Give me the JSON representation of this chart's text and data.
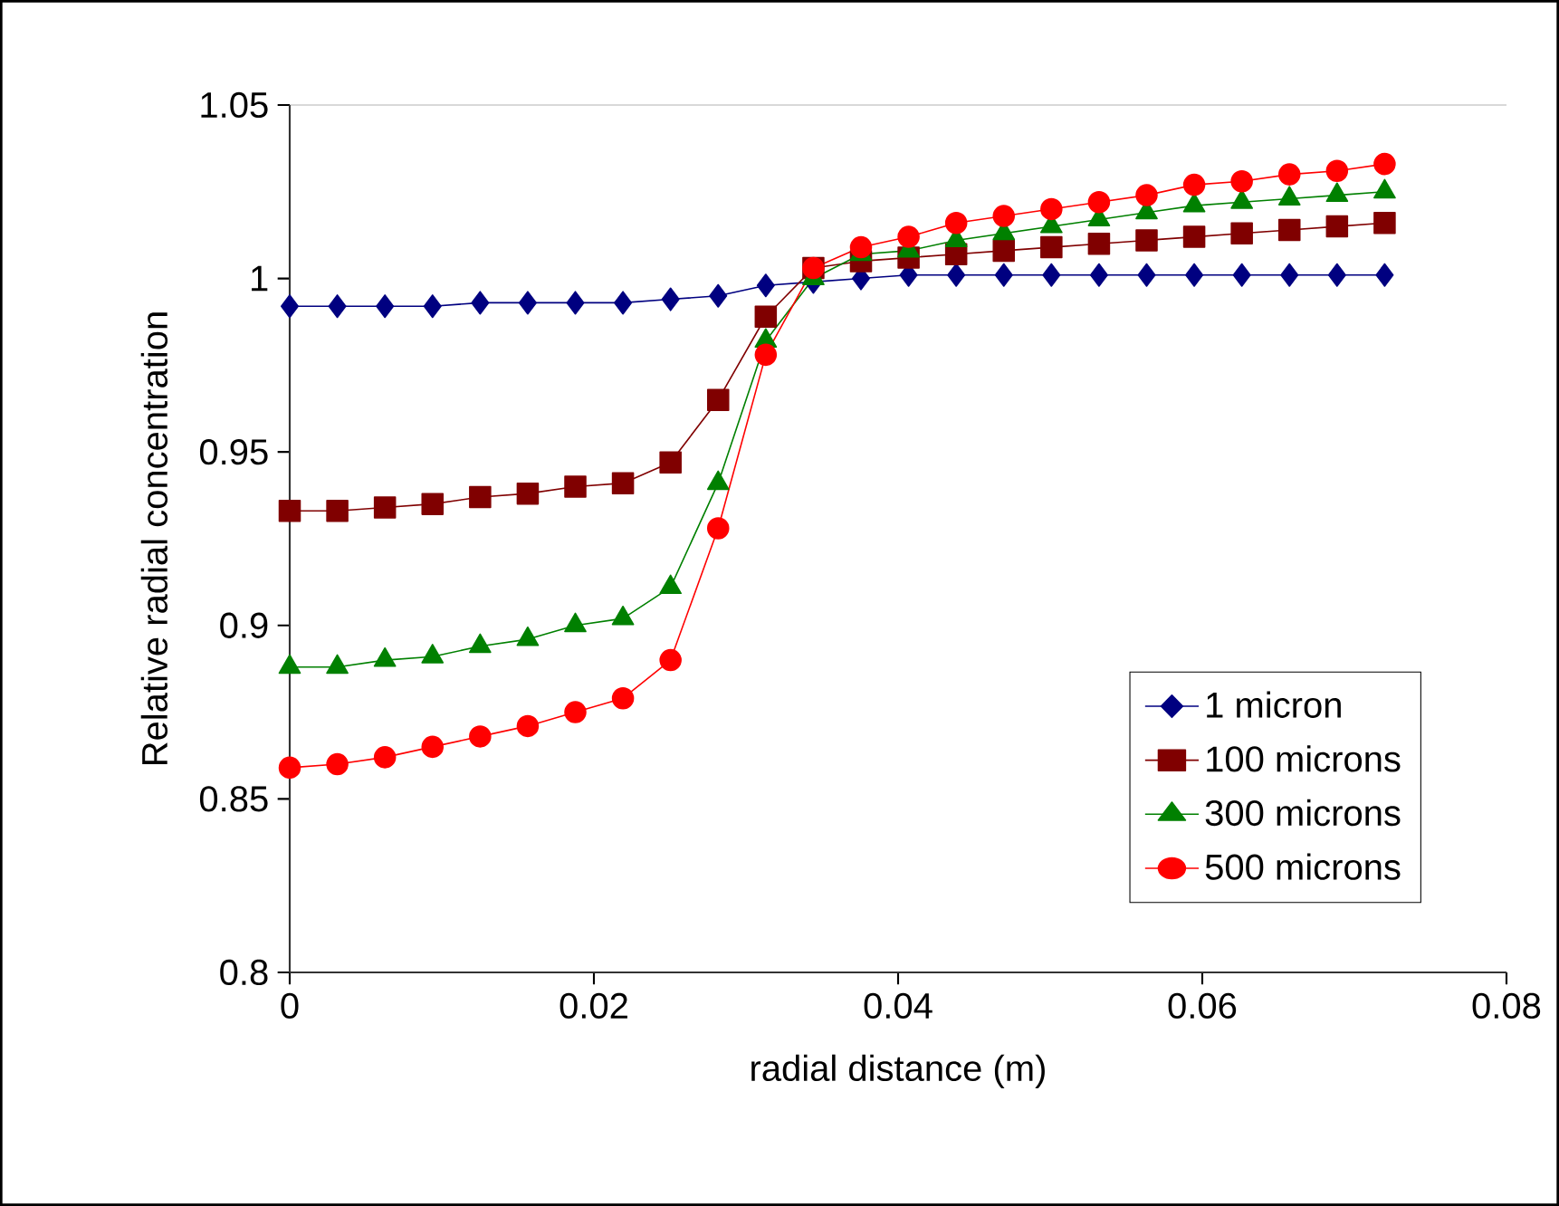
{
  "chart_data": {
    "type": "line",
    "xlabel": "radial distance (m)",
    "ylabel": "Relative radial concentration",
    "x": [
      0,
      0.00313,
      0.00626,
      0.00939,
      0.01252,
      0.01565,
      0.01878,
      0.02191,
      0.02504,
      0.02817,
      0.0313,
      0.03443,
      0.03756,
      0.04069,
      0.04382,
      0.04695,
      0.05008,
      0.05321,
      0.05634,
      0.05947,
      0.0626,
      0.06573,
      0.06886,
      0.07199
    ],
    "series": [
      {
        "name": "1 micron",
        "color": "#000080",
        "marker": "diamond",
        "values": [
          0.992,
          0.992,
          0.992,
          0.992,
          0.993,
          0.993,
          0.993,
          0.993,
          0.994,
          0.995,
          0.998,
          0.999,
          1.0,
          1.001,
          1.001,
          1.001,
          1.001,
          1.001,
          1.001,
          1.001,
          1.001,
          1.001,
          1.001,
          1.001
        ]
      },
      {
        "name": "100 microns",
        "color": "#800000",
        "marker": "square",
        "values": [
          0.933,
          0.933,
          0.934,
          0.935,
          0.937,
          0.938,
          0.94,
          0.941,
          0.947,
          0.965,
          0.989,
          1.003,
          1.005,
          1.006,
          1.007,
          1.008,
          1.009,
          1.01,
          1.011,
          1.012,
          1.013,
          1.014,
          1.015,
          1.016
        ]
      },
      {
        "name": "300 microns",
        "color": "#008000",
        "marker": "triangle",
        "values": [
          0.888,
          0.888,
          0.89,
          0.891,
          0.894,
          0.896,
          0.9,
          0.902,
          0.911,
          0.941,
          0.982,
          1.0,
          1.007,
          1.008,
          1.011,
          1.013,
          1.015,
          1.017,
          1.019,
          1.021,
          1.022,
          1.023,
          1.024,
          1.025
        ]
      },
      {
        "name": "500 microns",
        "color": "#ff0000",
        "marker": "circle",
        "values": [
          0.859,
          0.86,
          0.862,
          0.865,
          0.868,
          0.871,
          0.875,
          0.879,
          0.89,
          0.928,
          0.978,
          1.003,
          1.009,
          1.012,
          1.016,
          1.018,
          1.02,
          1.022,
          1.024,
          1.027,
          1.028,
          1.03,
          1.031,
          1.033
        ]
      }
    ],
    "xlim": [
      0,
      0.08
    ],
    "xticks": [
      0,
      0.02,
      0.04,
      0.06,
      0.08
    ],
    "ylim": [
      0.8,
      1.05
    ],
    "yticks": [
      0.8,
      0.85,
      0.9,
      0.95,
      1,
      1.05
    ],
    "grid": false,
    "legend": "bottom right",
    "line_style": "solid"
  }
}
